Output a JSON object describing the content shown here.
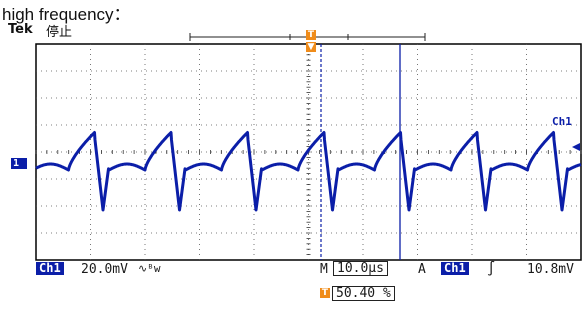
{
  "caption": "high frequency：",
  "scope": {
    "brand": "Tek",
    "status": "停止",
    "trigger_marker": "T",
    "ground_marker": "1",
    "channel_right_label": "Ch1",
    "bottom": {
      "ch_label": "Ch1",
      "ch_scale": "20.0mV",
      "coupling_symbol": "∿",
      "bw_symbol": "ᴮw",
      "m_label": "M",
      "timebase": "10.0µs",
      "a_label": "A",
      "trig_channel": "Ch1",
      "trig_slope": "∫",
      "trig_level": "10.8mV"
    },
    "trigger_position": {
      "marker": "T",
      "value": "50.40 %"
    },
    "colors": {
      "trace": "#0b1ea8",
      "trigger": "#f08c1a",
      "graticule": "#000000"
    }
  }
}
